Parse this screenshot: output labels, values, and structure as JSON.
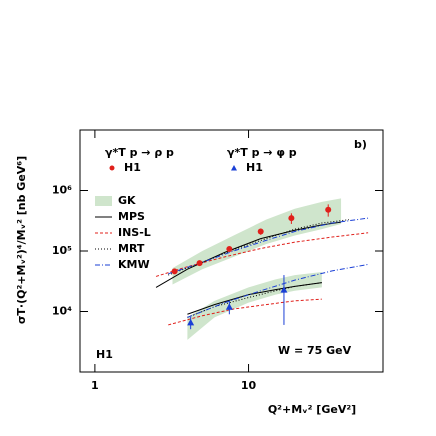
{
  "chart_data": {
    "type": "scatter",
    "log_x": true,
    "log_y": true,
    "xlabel": "Q²+Mᵥ² [GeV²]",
    "ylabel": "σT·(Q²+Mᵥ²)⁴/Mᵥ² [nb GeV⁶]",
    "xlim": [
      0.8,
      75
    ],
    "ylim": [
      1000,
      10000000
    ],
    "xticks": [
      1,
      10
    ],
    "yticks": [
      {
        "value": 10000,
        "label": "10⁴"
      },
      {
        "value": 100000,
        "label": "10⁵"
      },
      {
        "value": 1000000,
        "label": "10⁶"
      }
    ],
    "annotations": [
      "b)",
      "H1",
      "W = 75 GeV"
    ],
    "legend_headers": [
      "γ*T p → ρ p",
      "γ*T p → φ p"
    ],
    "series": [
      {
        "name": "H1",
        "color": "#e0201b",
        "marker": "circle",
        "x": [
          3.3,
          4.8,
          7.5,
          12,
          19,
          33
        ],
        "values": [
          46000,
          63000,
          108000,
          210000,
          350000,
          480000
        ],
        "errors": [
          4000,
          6000,
          9000,
          25000,
          70000,
          110000
        ]
      },
      {
        "name": "H1",
        "color": "#1a3fd6",
        "marker": "triangle",
        "x": [
          4.2,
          7.5,
          17
        ],
        "values": [
          6600,
          12000,
          23000
        ],
        "errors": [
          1500,
          3000,
          17000
        ]
      }
    ],
    "bands": [
      {
        "name": "GK",
        "color": "#cfe5cc",
        "x": [
          3.2,
          5,
          8,
          13,
          20,
          30,
          40
        ],
        "low": [
          28000,
          50000,
          80000,
          130000,
          180000,
          230000,
          280000
        ],
        "high": [
          52000,
          100000,
          180000,
          330000,
          500000,
          650000,
          740000
        ]
      },
      {
        "color": "#cfe5cc",
        "x": [
          4,
          6,
          10,
          15,
          20,
          30
        ],
        "low": [
          3400,
          8000,
          14000,
          19000,
          22000,
          25000
        ],
        "high": [
          8000,
          15000,
          25000,
          34000,
          40000,
          45000
        ]
      }
    ],
    "lines": [
      {
        "name": "MPS",
        "color": "#000000",
        "dash": "none",
        "curves": [
          {
            "x": [
              2.5,
              4,
              7,
              12,
              20,
              30,
              40
            ],
            "values": [
              25000,
              50000,
              95000,
              160000,
              220000,
              270000,
              300000
            ]
          },
          {
            "x": [
              4,
              6,
              10,
              15,
              20,
              30
            ],
            "values": [
              9000,
              13000,
              19000,
              23000,
              26000,
              30000
            ]
          }
        ]
      },
      {
        "name": "INS-L",
        "color": "#e0201b",
        "dash": "3,2",
        "curves": [
          {
            "x": [
              2.5,
              4,
              7,
              12,
              20,
              35,
              60
            ],
            "values": [
              38000,
              55000,
              80000,
              110000,
              140000,
              170000,
              200000
            ]
          },
          {
            "x": [
              3,
              5,
              8,
              13,
              20,
              30
            ],
            "values": [
              6000,
              8500,
              11000,
              13000,
              15000,
              16000
            ]
          }
        ]
      },
      {
        "name": "MRT",
        "color": "#000000",
        "dash": "1,2",
        "curves": [
          {
            "x": [
              3,
              5,
              8,
              13,
              20,
              30,
              45
            ],
            "values": [
              40000,
              65000,
              105000,
              160000,
              230000,
              290000,
              330000
            ]
          },
          {
            "x": [
              4,
              6,
              10,
              15,
              20,
              30
            ],
            "values": [
              8000,
              12000,
              17000,
              22000,
              26000,
              30000
            ]
          }
        ]
      },
      {
        "name": "KMW",
        "color": "#1a3fd6",
        "dash": "5,2,1,2",
        "curves": [
          {
            "x": [
              3,
              5,
              8,
              13,
              20,
              35,
              60
            ],
            "values": [
              42000,
              65000,
              100000,
              150000,
              210000,
              290000,
              350000
            ]
          },
          {
            "x": [
              4,
              7,
              12,
              20,
              35,
              60
            ],
            "values": [
              8000,
              14000,
              22000,
              33000,
              47000,
              60000
            ]
          }
        ]
      }
    ]
  }
}
